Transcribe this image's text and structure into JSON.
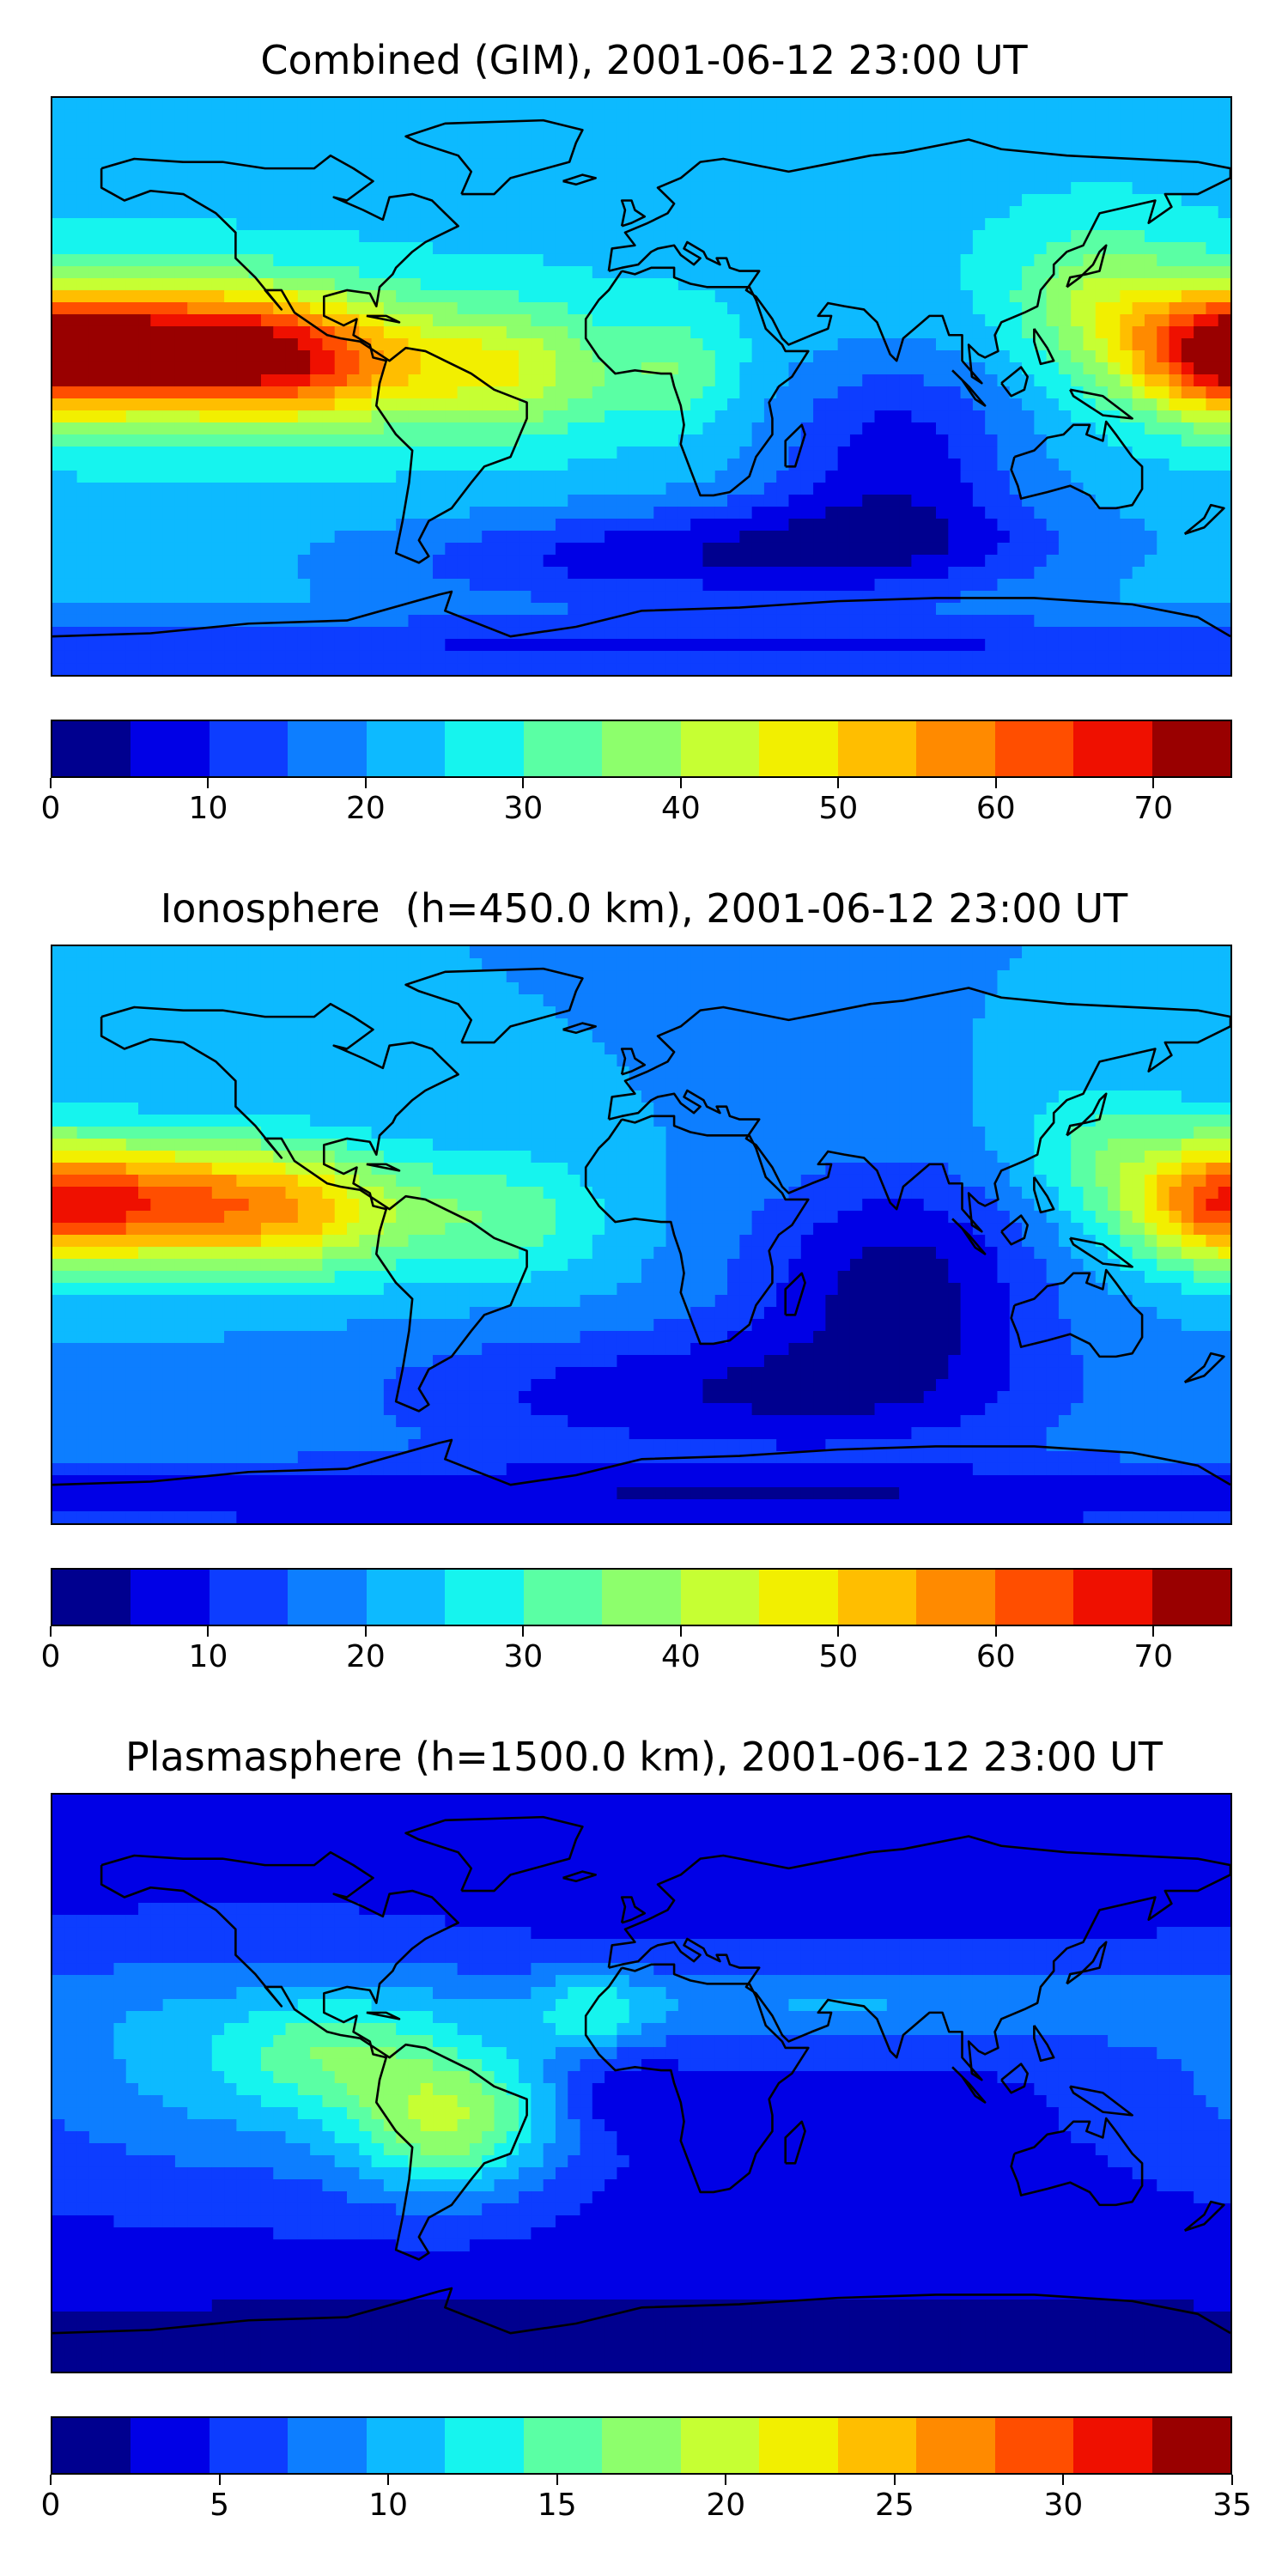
{
  "colormap": [
    "#00008f",
    "#0000e6",
    "#0d3dff",
    "#0d7eff",
    "#0dbaff",
    "#16f4ee",
    "#5affa4",
    "#8dff6c",
    "#c6ff33",
    "#f2ef00",
    "#ffbe00",
    "#ff8a00",
    "#ff4e00",
    "#ef1000",
    "#990000"
  ],
  "panels": [
    {
      "title": "Combined (GIM), 2001-06-12 23:00 UT",
      "colorbar": {
        "min": 0,
        "max": 75,
        "step": 5,
        "ticks": [
          "0",
          "10",
          "20",
          "30",
          "40",
          "50",
          "60",
          "70"
        ],
        "tick_values": [
          0,
          10,
          20,
          30,
          40,
          50,
          60,
          70
        ]
      },
      "field": {
        "base": 24,
        "blobs": [
          {
            "lon": -138,
            "lat": 12,
            "amp": 44,
            "sx": 38,
            "sy": 14
          },
          {
            "lon": -100,
            "lat": 5,
            "amp": 20,
            "sx": 30,
            "sy": 14
          },
          {
            "lon": 178,
            "lat": 10,
            "amp": 34,
            "sx": 22,
            "sy": 14
          },
          {
            "lon": 140,
            "lat": 28,
            "amp": 14,
            "sx": 20,
            "sy": 15
          },
          {
            "lon": -40,
            "lat": 5,
            "amp": 18,
            "sx": 22,
            "sy": 14
          },
          {
            "lon": 10,
            "lat": 5,
            "amp": 10,
            "sx": 14,
            "sy": 12
          },
          {
            "lon": 78,
            "lat": -20,
            "amp": -16,
            "sx": 28,
            "sy": 22
          },
          {
            "lon": 60,
            "lat": -50,
            "amp": -14,
            "sx": 60,
            "sy": 12
          },
          {
            "lon": -20,
            "lat": -55,
            "amp": -10,
            "sx": 60,
            "sy": 10
          },
          {
            "lon": 0,
            "lat": -82,
            "amp": -14,
            "sx": 400,
            "sy": 8
          },
          {
            "lon": -30,
            "lat": 82,
            "amp": -4,
            "sx": 80,
            "sy": 8
          }
        ]
      }
    },
    {
      "title": "Ionosphere  (h=450.0 km), 2001-06-12 23:00 UT",
      "colorbar": {
        "min": 0,
        "max": 75,
        "step": 5,
        "ticks": [
          "0",
          "10",
          "20",
          "30",
          "40",
          "50",
          "60",
          "70"
        ],
        "tick_values": [
          0,
          10,
          20,
          30,
          40,
          50,
          60,
          70
        ]
      },
      "field": {
        "base": 20,
        "blobs": [
          {
            "lon": -140,
            "lat": 10,
            "amp": 34,
            "sx": 38,
            "sy": 14
          },
          {
            "lon": -100,
            "lat": 5,
            "amp": 14,
            "sx": 26,
            "sy": 14
          },
          {
            "lon": 178,
            "lat": 10,
            "amp": 28,
            "sx": 22,
            "sy": 14
          },
          {
            "lon": 140,
            "lat": 28,
            "amp": 10,
            "sx": 20,
            "sy": 15
          },
          {
            "lon": -40,
            "lat": 5,
            "amp": 12,
            "sx": 22,
            "sy": 14
          },
          {
            "lon": 78,
            "lat": -15,
            "amp": -17,
            "sx": 32,
            "sy": 25
          },
          {
            "lon": 20,
            "lat": -50,
            "amp": -14,
            "sx": 70,
            "sy": 14
          },
          {
            "lon": 0,
            "lat": -82,
            "amp": -14,
            "sx": 400,
            "sy": 8
          }
        ]
      }
    },
    {
      "title": "Plasmasphere (h=1500.0 km), 2001-06-12 23:00 UT",
      "colorbar": {
        "min": 0,
        "max": 35,
        "step": 2.5,
        "ticks": [
          "0",
          "5",
          "10",
          "15",
          "20",
          "25",
          "30",
          "35"
        ],
        "tick_values": [
          0,
          5,
          10,
          15,
          20,
          25,
          30,
          35
        ]
      },
      "field": {
        "base": 4,
        "blobs": [
          {
            "lon": -120,
            "lat": 5,
            "amp": 7,
            "sx": 60,
            "sy": 26
          },
          {
            "lon": -58,
            "lat": -12,
            "amp": 13,
            "sx": 22,
            "sy": 16
          },
          {
            "lon": -95,
            "lat": 10,
            "amp": 6,
            "sx": 22,
            "sy": 12
          },
          {
            "lon": -15,
            "lat": 22,
            "amp": 6,
            "sx": 12,
            "sy": 8
          },
          {
            "lon": 60,
            "lat": 25,
            "amp": 6,
            "sx": 80,
            "sy": 10
          },
          {
            "lon": -5,
            "lat": -5,
            "amp": -3,
            "sx": 12,
            "sy": 8
          },
          {
            "lon": 0,
            "lat": -80,
            "amp": -3,
            "sx": 400,
            "sy": 10
          }
        ]
      }
    }
  ],
  "coastlines": [
    [
      [
        -165,
        68
      ],
      [
        -155,
        71
      ],
      [
        -140,
        70
      ],
      [
        -128,
        70
      ],
      [
        -115,
        68
      ],
      [
        -100,
        68
      ],
      [
        -95,
        72
      ],
      [
        -88,
        68
      ],
      [
        -82,
        64
      ],
      [
        -90,
        58
      ],
      [
        -94,
        59
      ],
      [
        -85,
        55
      ],
      [
        -79,
        52
      ],
      [
        -77,
        59
      ],
      [
        -70,
        60
      ],
      [
        -64,
        58
      ],
      [
        -60,
        54
      ],
      [
        -56,
        50
      ],
      [
        -66,
        45
      ],
      [
        -70,
        42
      ],
      [
        -75,
        37
      ],
      [
        -76,
        35
      ],
      [
        -80,
        31
      ],
      [
        -81,
        25
      ],
      [
        -83,
        29
      ],
      [
        -90,
        30
      ],
      [
        -97,
        28
      ],
      [
        -97,
        22
      ],
      [
        -91,
        19
      ],
      [
        -87,
        21
      ],
      [
        -88,
        16
      ],
      [
        -83,
        13
      ],
      [
        -82,
        9
      ],
      [
        -78,
        8
      ],
      [
        -80,
        1
      ],
      [
        -81,
        -6
      ],
      [
        -75,
        -15
      ],
      [
        -70,
        -20
      ],
      [
        -71,
        -30
      ],
      [
        -73,
        -42
      ],
      [
        -75,
        -52
      ],
      [
        -68,
        -55
      ],
      [
        -65,
        -53
      ],
      [
        -68,
        -48
      ],
      [
        -65,
        -42
      ],
      [
        -58,
        -38
      ],
      [
        -52,
        -30
      ],
      [
        -48,
        -25
      ],
      [
        -40,
        -22
      ],
      [
        -35,
        -10
      ],
      [
        -35,
        -5
      ],
      [
        -45,
        -1
      ],
      [
        -52,
        4
      ],
      [
        -60,
        8
      ],
      [
        -66,
        11
      ],
      [
        -72,
        12
      ],
      [
        -77,
        8
      ],
      [
        -86,
        14
      ],
      [
        -92,
        15
      ],
      [
        -96,
        16
      ],
      [
        -106,
        23
      ],
      [
        -110,
        30
      ],
      [
        -115,
        30
      ],
      [
        -110,
        24
      ],
      [
        -118,
        34
      ],
      [
        -124,
        40
      ],
      [
        -124,
        48
      ],
      [
        -130,
        54
      ],
      [
        -140,
        60
      ],
      [
        -150,
        61
      ],
      [
        -158,
        58
      ],
      [
        -165,
        62
      ],
      [
        -165,
        68
      ]
    ],
    [
      [
        -10,
        36
      ],
      [
        -9,
        43
      ],
      [
        -2,
        44
      ],
      [
        -5,
        48
      ],
      [
        2,
        51
      ],
      [
        8,
        54
      ],
      [
        10,
        57
      ],
      [
        5,
        62
      ],
      [
        12,
        65
      ],
      [
        18,
        70
      ],
      [
        25,
        71
      ],
      [
        30,
        70
      ],
      [
        40,
        68
      ],
      [
        45,
        67
      ],
      [
        55,
        69
      ],
      [
        70,
        72
      ],
      [
        80,
        73
      ],
      [
        100,
        77
      ],
      [
        110,
        74
      ],
      [
        130,
        72
      ],
      [
        150,
        71
      ],
      [
        170,
        70
      ],
      [
        180,
        68
      ],
      [
        180,
        65
      ],
      [
        170,
        60
      ],
      [
        160,
        60
      ],
      [
        162,
        56
      ],
      [
        155,
        51
      ],
      [
        157,
        58
      ],
      [
        140,
        54
      ],
      [
        135,
        44
      ],
      [
        130,
        42
      ],
      [
        126,
        38
      ],
      [
        126,
        35
      ],
      [
        122,
        30
      ],
      [
        121,
        25
      ],
      [
        117,
        23
      ],
      [
        110,
        20
      ],
      [
        108,
        16
      ],
      [
        109,
        11
      ],
      [
        105,
        9
      ],
      [
        103,
        10
      ],
      [
        100,
        13
      ],
      [
        101,
        3
      ],
      [
        104,
        1
      ],
      [
        98,
        8
      ],
      [
        98,
        16
      ],
      [
        94,
        16
      ],
      [
        92,
        22
      ],
      [
        88,
        22
      ],
      [
        80,
        15
      ],
      [
        78,
        8
      ],
      [
        76,
        10
      ],
      [
        72,
        20
      ],
      [
        68,
        24
      ],
      [
        62,
        25
      ],
      [
        57,
        26
      ],
      [
        54,
        22
      ],
      [
        58,
        22
      ],
      [
        57,
        18
      ],
      [
        52,
        16
      ],
      [
        45,
        13
      ],
      [
        43,
        15
      ],
      [
        40,
        21
      ],
      [
        35,
        28
      ],
      [
        32,
        30
      ],
      [
        36,
        36
      ],
      [
        30,
        36
      ],
      [
        27,
        37
      ],
      [
        26,
        40
      ],
      [
        23,
        40
      ],
      [
        24,
        38
      ],
      [
        20,
        40
      ],
      [
        19,
        42
      ],
      [
        14,
        45
      ],
      [
        13,
        43
      ],
      [
        18,
        40
      ],
      [
        16,
        38
      ],
      [
        12,
        41
      ],
      [
        10,
        44
      ],
      [
        5,
        43
      ],
      [
        3,
        42
      ],
      [
        -1,
        38
      ],
      [
        -6,
        37
      ],
      [
        -10,
        36
      ]
    ],
    [
      [
        -6,
        36
      ],
      [
        -10,
        30
      ],
      [
        -13,
        27
      ],
      [
        -17,
        21
      ],
      [
        -17,
        15
      ],
      [
        -13,
        9
      ],
      [
        -8,
        4
      ],
      [
        -2,
        5
      ],
      [
        6,
        4
      ],
      [
        9,
        4
      ],
      [
        10,
        0
      ],
      [
        12,
        -6
      ],
      [
        13,
        -12
      ],
      [
        12,
        -18
      ],
      [
        15,
        -26
      ],
      [
        18,
        -34
      ],
      [
        22,
        -34
      ],
      [
        27,
        -33
      ],
      [
        33,
        -28
      ],
      [
        35,
        -22
      ],
      [
        40,
        -15
      ],
      [
        40,
        -10
      ],
      [
        39,
        -5
      ],
      [
        42,
        0
      ],
      [
        46,
        3
      ],
      [
        51,
        11
      ],
      [
        44,
        11
      ],
      [
        43,
        13
      ],
      [
        38,
        18
      ],
      [
        35,
        27
      ],
      [
        33,
        31
      ],
      [
        30,
        31
      ],
      [
        20,
        31
      ],
      [
        15,
        32
      ],
      [
        10,
        34
      ],
      [
        10,
        37
      ],
      [
        3,
        37
      ],
      [
        -2,
        35
      ],
      [
        -6,
        36
      ]
    ],
    [
      [
        114,
        -22
      ],
      [
        120,
        -20
      ],
      [
        124,
        -16
      ],
      [
        129,
        -15
      ],
      [
        132,
        -12
      ],
      [
        137,
        -12
      ],
      [
        136,
        -15
      ],
      [
        141,
        -17
      ],
      [
        142,
        -11
      ],
      [
        145,
        -15
      ],
      [
        150,
        -22
      ],
      [
        153,
        -25
      ],
      [
        153,
        -32
      ],
      [
        150,
        -37
      ],
      [
        145,
        -38
      ],
      [
        140,
        -38
      ],
      [
        137,
        -34
      ],
      [
        131,
        -31
      ],
      [
        124,
        -33
      ],
      [
        116,
        -35
      ],
      [
        115,
        -31
      ],
      [
        113,
        -26
      ],
      [
        114,
        -22
      ]
    ],
    [
      [
        -180,
        -78
      ],
      [
        -150,
        -77
      ],
      [
        -120,
        -74
      ],
      [
        -90,
        -73
      ],
      [
        -62,
        -65
      ],
      [
        -58,
        -64
      ],
      [
        -60,
        -70
      ],
      [
        -40,
        -78
      ],
      [
        -20,
        -75
      ],
      [
        0,
        -70
      ],
      [
        30,
        -69
      ],
      [
        60,
        -67
      ],
      [
        90,
        -66
      ],
      [
        120,
        -66
      ],
      [
        150,
        -68
      ],
      [
        170,
        -72
      ],
      [
        180,
        -78
      ]
    ],
    [
      [
        -55,
        60
      ],
      [
        -45,
        60
      ],
      [
        -40,
        65
      ],
      [
        -22,
        70
      ],
      [
        -20,
        76
      ],
      [
        -18,
        80
      ],
      [
        -30,
        83
      ],
      [
        -60,
        82
      ],
      [
        -72,
        78
      ],
      [
        -68,
        76
      ],
      [
        -56,
        72
      ],
      [
        -52,
        67
      ],
      [
        -55,
        60
      ]
    ],
    [
      [
        -6,
        50
      ],
      [
        -3,
        51
      ],
      [
        1,
        53
      ],
      [
        -2,
        55
      ],
      [
        -3,
        58
      ],
      [
        -6,
        58
      ],
      [
        -5,
        55
      ],
      [
        -6,
        50
      ]
    ],
    [
      [
        130,
        31
      ],
      [
        131,
        34
      ],
      [
        136,
        35
      ],
      [
        140,
        36
      ],
      [
        141,
        40
      ],
      [
        142,
        44
      ],
      [
        140,
        42
      ],
      [
        138,
        38
      ],
      [
        134,
        34
      ],
      [
        130,
        31
      ]
    ],
    [
      [
        95,
        5
      ],
      [
        100,
        0
      ],
      [
        105,
        -6
      ],
      [
        102,
        -4
      ],
      [
        98,
        2
      ],
      [
        95,
        5
      ]
    ],
    [
      [
        110,
        1
      ],
      [
        113,
        -3
      ],
      [
        117,
        -1
      ],
      [
        118,
        3
      ],
      [
        116,
        6
      ],
      [
        110,
        1
      ]
    ],
    [
      [
        131,
        -1
      ],
      [
        141,
        -3
      ],
      [
        150,
        -10
      ],
      [
        141,
        -9
      ],
      [
        132,
        -3
      ],
      [
        131,
        -1
      ]
    ],
    [
      [
        44,
        -25
      ],
      [
        47,
        -25
      ],
      [
        50,
        -15
      ],
      [
        49,
        -12
      ],
      [
        44,
        -17
      ],
      [
        44,
        -25
      ]
    ],
    [
      [
        -24,
        64
      ],
      [
        -18,
        66
      ],
      [
        -14,
        65
      ],
      [
        -20,
        63
      ],
      [
        -24,
        64
      ]
    ],
    [
      [
        166,
        -46
      ],
      [
        172,
        -41
      ],
      [
        174,
        -37
      ],
      [
        178,
        -38
      ],
      [
        172,
        -44
      ],
      [
        166,
        -46
      ]
    ],
    [
      [
        -84,
        22
      ],
      [
        -74,
        20
      ],
      [
        -78,
        22
      ],
      [
        -84,
        22
      ]
    ],
    [
      [
        120,
        18
      ],
      [
        124,
        12
      ],
      [
        126,
        8
      ],
      [
        122,
        7
      ],
      [
        120,
        14
      ],
      [
        120,
        18
      ]
    ]
  ]
}
